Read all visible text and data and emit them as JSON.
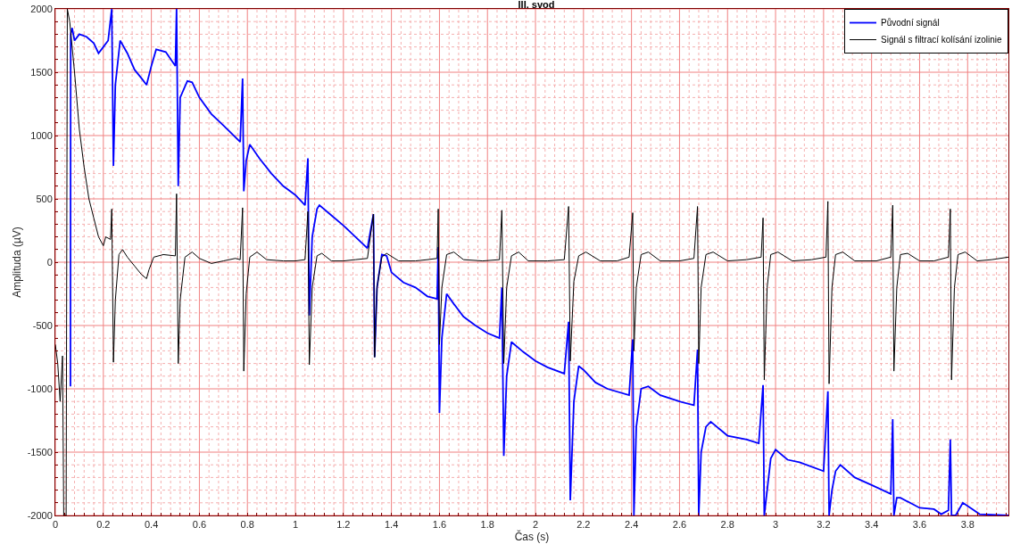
{
  "chart_data": {
    "type": "line",
    "title": "III. svod",
    "xlabel": "Čas (s)",
    "ylabel": "Amplituda (µV)",
    "xlim": [
      0,
      3.97
    ],
    "xticks": [
      0,
      {
        "value": 0.04,
        "label": null
      },
      {
        "value": 0.08,
        "label": null
      },
      {
        "value": 0.12,
        "label": null
      },
      {
        "value": 0.16,
        "label": null
      },
      0.2,
      {
        "value": 0.24,
        "label": null
      },
      {
        "value": 0.28,
        "label": null
      },
      {
        "value": 0.32,
        "label": null
      },
      {
        "value": 0.36,
        "label": null
      },
      0.4,
      {
        "value": 0.44,
        "label": null
      },
      {
        "value": 0.48,
        "label": null
      },
      {
        "value": 0.52,
        "label": null
      },
      {
        "value": 0.56,
        "label": null
      },
      0.6,
      {
        "value": 0.64,
        "label": null
      },
      {
        "value": 0.68,
        "label": null
      },
      {
        "value": 0.72,
        "label": null
      },
      {
        "value": 0.76,
        "label": null
      },
      0.8,
      {
        "value": 0.84,
        "label": null
      },
      {
        "value": 0.88,
        "label": null
      },
      {
        "value": 0.92,
        "label": null
      },
      {
        "value": 0.96,
        "label": null
      },
      1,
      {
        "value": 1.04,
        "label": null
      },
      {
        "value": 1.08,
        "label": null
      },
      {
        "value": 1.12,
        "label": null
      },
      {
        "value": 1.16,
        "label": null
      },
      1.2,
      {
        "value": 1.24,
        "label": null
      },
      {
        "value": 1.28,
        "label": null
      },
      {
        "value": 1.32,
        "label": null
      },
      {
        "value": 1.36,
        "label": null
      },
      1.4,
      {
        "value": 1.44,
        "label": null
      },
      {
        "value": 1.48,
        "label": null
      },
      {
        "value": 1.52,
        "label": null
      },
      {
        "value": 1.56,
        "label": null
      },
      1.6,
      {
        "value": 1.64,
        "label": null
      },
      {
        "value": 1.68,
        "label": null
      },
      {
        "value": 1.72,
        "label": null
      },
      {
        "value": 1.76,
        "label": null
      },
      1.8,
      {
        "value": 1.84,
        "label": null
      },
      {
        "value": 1.88,
        "label": null
      },
      {
        "value": 1.92,
        "label": null
      },
      {
        "value": 1.96,
        "label": null
      },
      2,
      {
        "value": 2.04,
        "label": null
      },
      {
        "value": 2.08,
        "label": null
      },
      {
        "value": 2.12,
        "label": null
      },
      {
        "value": 2.16,
        "label": null
      },
      2.2,
      {
        "value": 2.24,
        "label": null
      },
      {
        "value": 2.28,
        "label": null
      },
      {
        "value": 2.32,
        "label": null
      },
      {
        "value": 2.36,
        "label": null
      },
      2.4,
      {
        "value": 2.44,
        "label": null
      },
      {
        "value": 2.48,
        "label": null
      },
      {
        "value": 2.52,
        "label": null
      },
      {
        "value": 2.56,
        "label": null
      },
      2.6,
      {
        "value": 2.64,
        "label": null
      },
      {
        "value": 2.68,
        "label": null
      },
      {
        "value": 2.72,
        "label": null
      },
      {
        "value": 2.76,
        "label": null
      },
      2.8,
      {
        "value": 2.84,
        "label": null
      },
      {
        "value": 2.88,
        "label": null
      },
      {
        "value": 2.92,
        "label": null
      },
      {
        "value": 2.96,
        "label": null
      },
      3,
      {
        "value": 3.04,
        "label": null
      },
      {
        "value": 3.08,
        "label": null
      },
      {
        "value": 3.12,
        "label": null
      },
      {
        "value": 3.16,
        "label": null
      },
      3.2,
      {
        "value": 3.24,
        "label": null
      },
      {
        "value": 3.28,
        "label": null
      },
      {
        "value": 3.32,
        "label": null
      },
      {
        "value": 3.36,
        "label": null
      },
      3.4,
      {
        "value": 3.44,
        "label": null
      },
      {
        "value": 3.48,
        "label": null
      },
      {
        "value": 3.52,
        "label": null
      },
      {
        "value": 3.56,
        "label": null
      },
      3.6,
      {
        "value": 3.64,
        "label": null
      },
      {
        "value": 3.68,
        "label": null
      },
      {
        "value": 3.72,
        "label": null
      },
      {
        "value": 3.76,
        "label": null
      },
      3.8,
      {
        "value": 3.84,
        "label": null
      },
      {
        "value": 3.88,
        "label": null
      },
      {
        "value": 3.92,
        "label": null
      },
      {
        "value": 3.96,
        "label": null
      }
    ],
    "ylim": [
      -2000,
      2000
    ],
    "yticks": [
      -2000,
      {
        "value": -1900,
        "label": null
      },
      {
        "value": -1800,
        "label": null
      },
      {
        "value": -1700,
        "label": null
      },
      {
        "value": -1600,
        "label": null
      },
      -1500,
      {
        "value": -1400,
        "label": null
      },
      {
        "value": -1300,
        "label": null
      },
      {
        "value": -1200,
        "label": null
      },
      {
        "value": -1100,
        "label": null
      },
      -1000,
      {
        "value": -900,
        "label": null
      },
      {
        "value": -800,
        "label": null
      },
      {
        "value": -700,
        "label": null
      },
      {
        "value": -600,
        "label": null
      },
      -500,
      {
        "value": -400,
        "label": null
      },
      {
        "value": -300,
        "label": null
      },
      {
        "value": -200,
        "label": null
      },
      {
        "value": -100,
        "label": null
      },
      0,
      {
        "value": 100,
        "label": null
      },
      {
        "value": 200,
        "label": null
      },
      {
        "value": 300,
        "label": null
      },
      {
        "value": 400,
        "label": null
      },
      500,
      {
        "value": 600,
        "label": null
      },
      {
        "value": 700,
        "label": null
      },
      {
        "value": 800,
        "label": null
      },
      {
        "value": 900,
        "label": null
      },
      1000,
      {
        "value": 1100,
        "label": null
      },
      {
        "value": 1200,
        "label": null
      },
      {
        "value": 1300,
        "label": null
      },
      {
        "value": 1400,
        "label": null
      },
      1500,
      {
        "value": 1600,
        "label": null
      },
      {
        "value": 1700,
        "label": null
      },
      {
        "value": 1800,
        "label": null
      },
      {
        "value": 1900,
        "label": null
      },
      2000
    ],
    "grid": true,
    "legend": "top right",
    "marker": "none",
    "line_style": "solid",
    "series": [
      {
        "name": "Původní signál",
        "color": "#0000ff",
        "x": [
          0.063,
          0.064,
          0.07,
          0.08,
          0.1,
          0.13,
          0.16,
          0.18,
          0.2,
          0.22,
          0.235,
          0.242,
          0.25,
          0.27,
          0.3,
          0.33,
          0.36,
          0.38,
          0.4,
          0.42,
          0.46,
          0.5,
          0.505,
          0.512,
          0.52,
          0.55,
          0.57,
          0.6,
          0.65,
          0.7,
          0.77,
          0.78,
          0.785,
          0.795,
          0.81,
          0.85,
          0.9,
          0.95,
          1.0,
          1.04,
          1.052,
          1.058,
          1.07,
          1.09,
          1.1,
          1.15,
          1.2,
          1.25,
          1.3,
          1.325,
          1.33,
          1.34,
          1.36,
          1.38,
          1.4,
          1.45,
          1.5,
          1.55,
          1.59,
          1.595,
          1.6,
          1.61,
          1.63,
          1.66,
          1.7,
          1.75,
          1.8,
          1.85,
          1.86,
          1.868,
          1.88,
          1.9,
          1.95,
          2.0,
          2.05,
          2.12,
          2.138,
          2.145,
          2.16,
          2.18,
          2.2,
          2.25,
          2.3,
          2.39,
          2.405,
          2.41,
          2.42,
          2.44,
          2.47,
          2.52,
          2.6,
          2.66,
          2.675,
          2.68,
          2.69,
          2.71,
          2.73,
          2.8,
          2.88,
          2.93,
          2.948,
          2.953,
          2.965,
          2.98,
          3.0,
          3.05,
          3.1,
          3.2,
          3.218,
          3.223,
          3.235,
          3.25,
          3.27,
          3.33,
          3.4,
          3.48,
          3.488,
          3.493,
          3.505,
          3.52,
          3.6,
          3.66,
          3.69,
          3.72,
          3.728,
          3.733,
          3.75,
          3.78,
          3.82,
          3.85,
          3.97
        ],
        "values": [
          -980,
          1800,
          1850,
          1750,
          1800,
          1780,
          1730,
          1650,
          1700,
          1750,
          2000,
          760,
          1400,
          1750,
          1650,
          1520,
          1450,
          1400,
          1550,
          1680,
          1660,
          1550,
          2000,
          600,
          1300,
          1430,
          1420,
          1300,
          1170,
          1080,
          950,
          1450,
          560,
          800,
          930,
          820,
          700,
          600,
          530,
          450,
          820,
          -420,
          200,
          420,
          450,
          370,
          290,
          200,
          110,
          380,
          -750,
          -200,
          60,
          50,
          -80,
          -160,
          -200,
          -270,
          -290,
          120,
          -1190,
          -600,
          -250,
          -330,
          -430,
          -500,
          -560,
          -600,
          -200,
          -1530,
          -900,
          -630,
          -710,
          -780,
          -830,
          -880,
          -470,
          -1880,
          -1100,
          -820,
          -850,
          -950,
          -1000,
          -1050,
          -610,
          -2000,
          -1300,
          -1000,
          -980,
          -1050,
          -1100,
          -1130,
          -690,
          -2000,
          -1500,
          -1300,
          -1260,
          -1370,
          -1400,
          -1430,
          -970,
          -2000,
          -1800,
          -1550,
          -1480,
          -1560,
          -1580,
          -1650,
          -1020,
          -2000,
          -1800,
          -1650,
          -1600,
          -1700,
          -1760,
          -1830,
          -1240,
          -2000,
          -1860,
          -1860,
          -1940,
          -1950,
          -1990,
          -1960,
          -1400,
          -2000,
          -2000,
          -1900,
          -1950,
          -1990,
          -2000
        ]
      },
      {
        "name": "Signál s filtrací kolísání izolinie",
        "color": "#000000",
        "x": [
          0,
          0.01,
          0.02,
          0.03,
          0.035,
          0.045,
          0.05,
          0.06,
          0.08,
          0.1,
          0.12,
          0.14,
          0.16,
          0.18,
          0.2,
          0.21,
          0.23,
          0.235,
          0.242,
          0.25,
          0.265,
          0.28,
          0.3,
          0.33,
          0.36,
          0.38,
          0.39,
          0.41,
          0.45,
          0.5,
          0.505,
          0.512,
          0.52,
          0.54,
          0.57,
          0.6,
          0.65,
          0.7,
          0.75,
          0.77,
          0.78,
          0.785,
          0.795,
          0.81,
          0.84,
          0.88,
          0.95,
          1.0,
          1.04,
          1.052,
          1.058,
          1.07,
          1.09,
          1.11,
          1.15,
          1.2,
          1.25,
          1.3,
          1.325,
          1.33,
          1.34,
          1.36,
          1.38,
          1.43,
          1.5,
          1.55,
          1.59,
          1.595,
          1.6,
          1.61,
          1.63,
          1.66,
          1.7,
          1.78,
          1.85,
          1.86,
          1.868,
          1.88,
          1.9,
          1.93,
          1.97,
          2.05,
          2.12,
          2.138,
          2.145,
          2.16,
          2.18,
          2.21,
          2.27,
          2.34,
          2.39,
          2.405,
          2.41,
          2.42,
          2.44,
          2.47,
          2.52,
          2.6,
          2.66,
          2.675,
          2.68,
          2.69,
          2.71,
          2.74,
          2.8,
          2.88,
          2.94,
          2.948,
          2.953,
          2.965,
          2.98,
          3.01,
          3.07,
          3.15,
          3.21,
          3.218,
          3.223,
          3.235,
          3.25,
          3.28,
          3.33,
          3.42,
          3.48,
          3.488,
          3.493,
          3.505,
          3.52,
          3.55,
          3.6,
          3.66,
          3.72,
          3.728,
          3.733,
          3.745,
          3.76,
          3.79,
          3.84,
          3.9,
          3.97
        ],
        "values": [
          -650,
          -800,
          -1100,
          -740,
          -2000,
          -2000,
          2000,
          1900,
          1500,
          1050,
          750,
          500,
          350,
          200,
          130,
          200,
          180,
          420,
          -790,
          -300,
          60,
          100,
          40,
          -30,
          -100,
          -130,
          -60,
          40,
          60,
          50,
          540,
          -800,
          -300,
          40,
          80,
          30,
          -10,
          10,
          30,
          20,
          430,
          -860,
          -250,
          40,
          80,
          20,
          10,
          10,
          20,
          400,
          -810,
          -200,
          50,
          70,
          10,
          10,
          20,
          30,
          380,
          -750,
          -200,
          40,
          70,
          10,
          10,
          20,
          30,
          420,
          -650,
          -200,
          60,
          80,
          20,
          10,
          20,
          410,
          -800,
          -200,
          50,
          80,
          10,
          10,
          20,
          440,
          -780,
          -150,
          50,
          80,
          10,
          10,
          40,
          390,
          -700,
          -200,
          60,
          80,
          10,
          10,
          30,
          440,
          -800,
          -200,
          60,
          80,
          10,
          20,
          40,
          350,
          -930,
          -200,
          60,
          80,
          10,
          20,
          40,
          480,
          -960,
          -200,
          60,
          80,
          10,
          10,
          40,
          450,
          -860,
          -200,
          60,
          70,
          10,
          10,
          40,
          420,
          -930,
          -200,
          60,
          80,
          10,
          20,
          40
        ]
      }
    ]
  }
}
